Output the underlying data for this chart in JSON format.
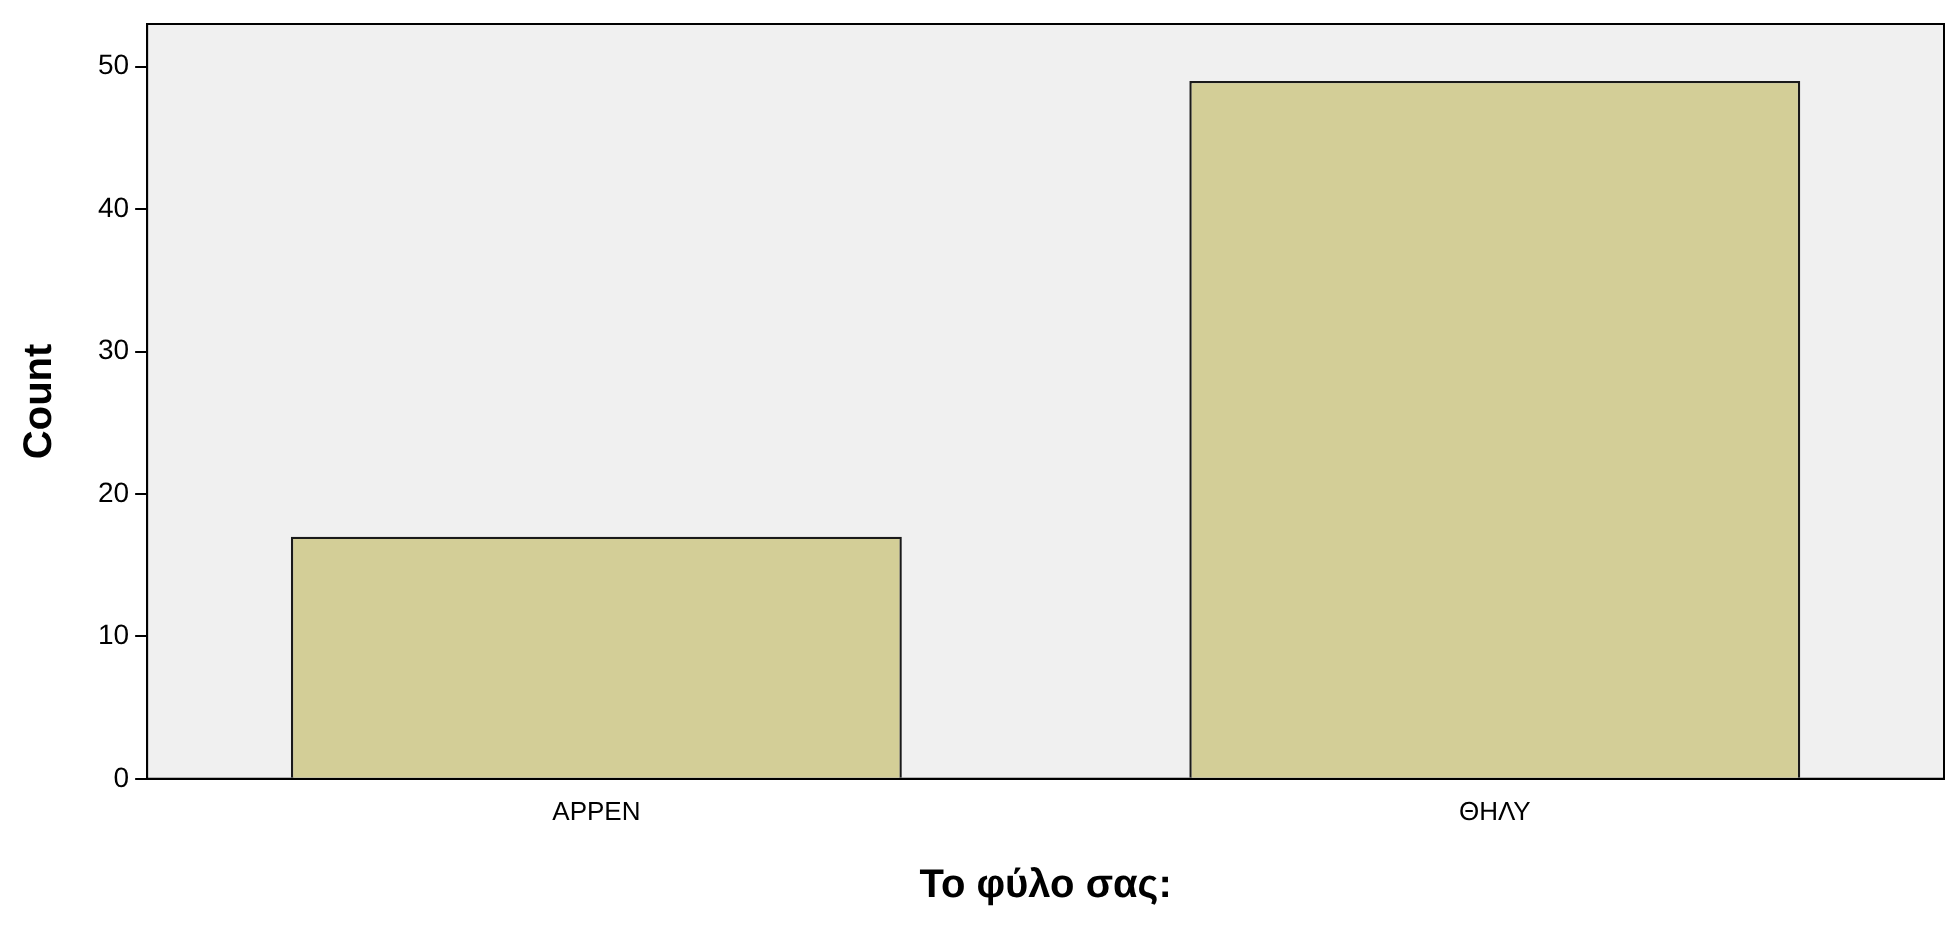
{
  "chart_data": {
    "type": "bar",
    "xlabel": "Το φύλο σας:",
    "ylabel": "Count",
    "categories": [
      "ΑΡΡΕΝ",
      "ΘΗΛΥ"
    ],
    "values": [
      17,
      49
    ],
    "color": "#d3ce97",
    "ylim": [
      0,
      53
    ],
    "yticks": [
      0,
      10,
      20,
      30,
      40,
      50
    ],
    "grid": false,
    "legend": false
  }
}
